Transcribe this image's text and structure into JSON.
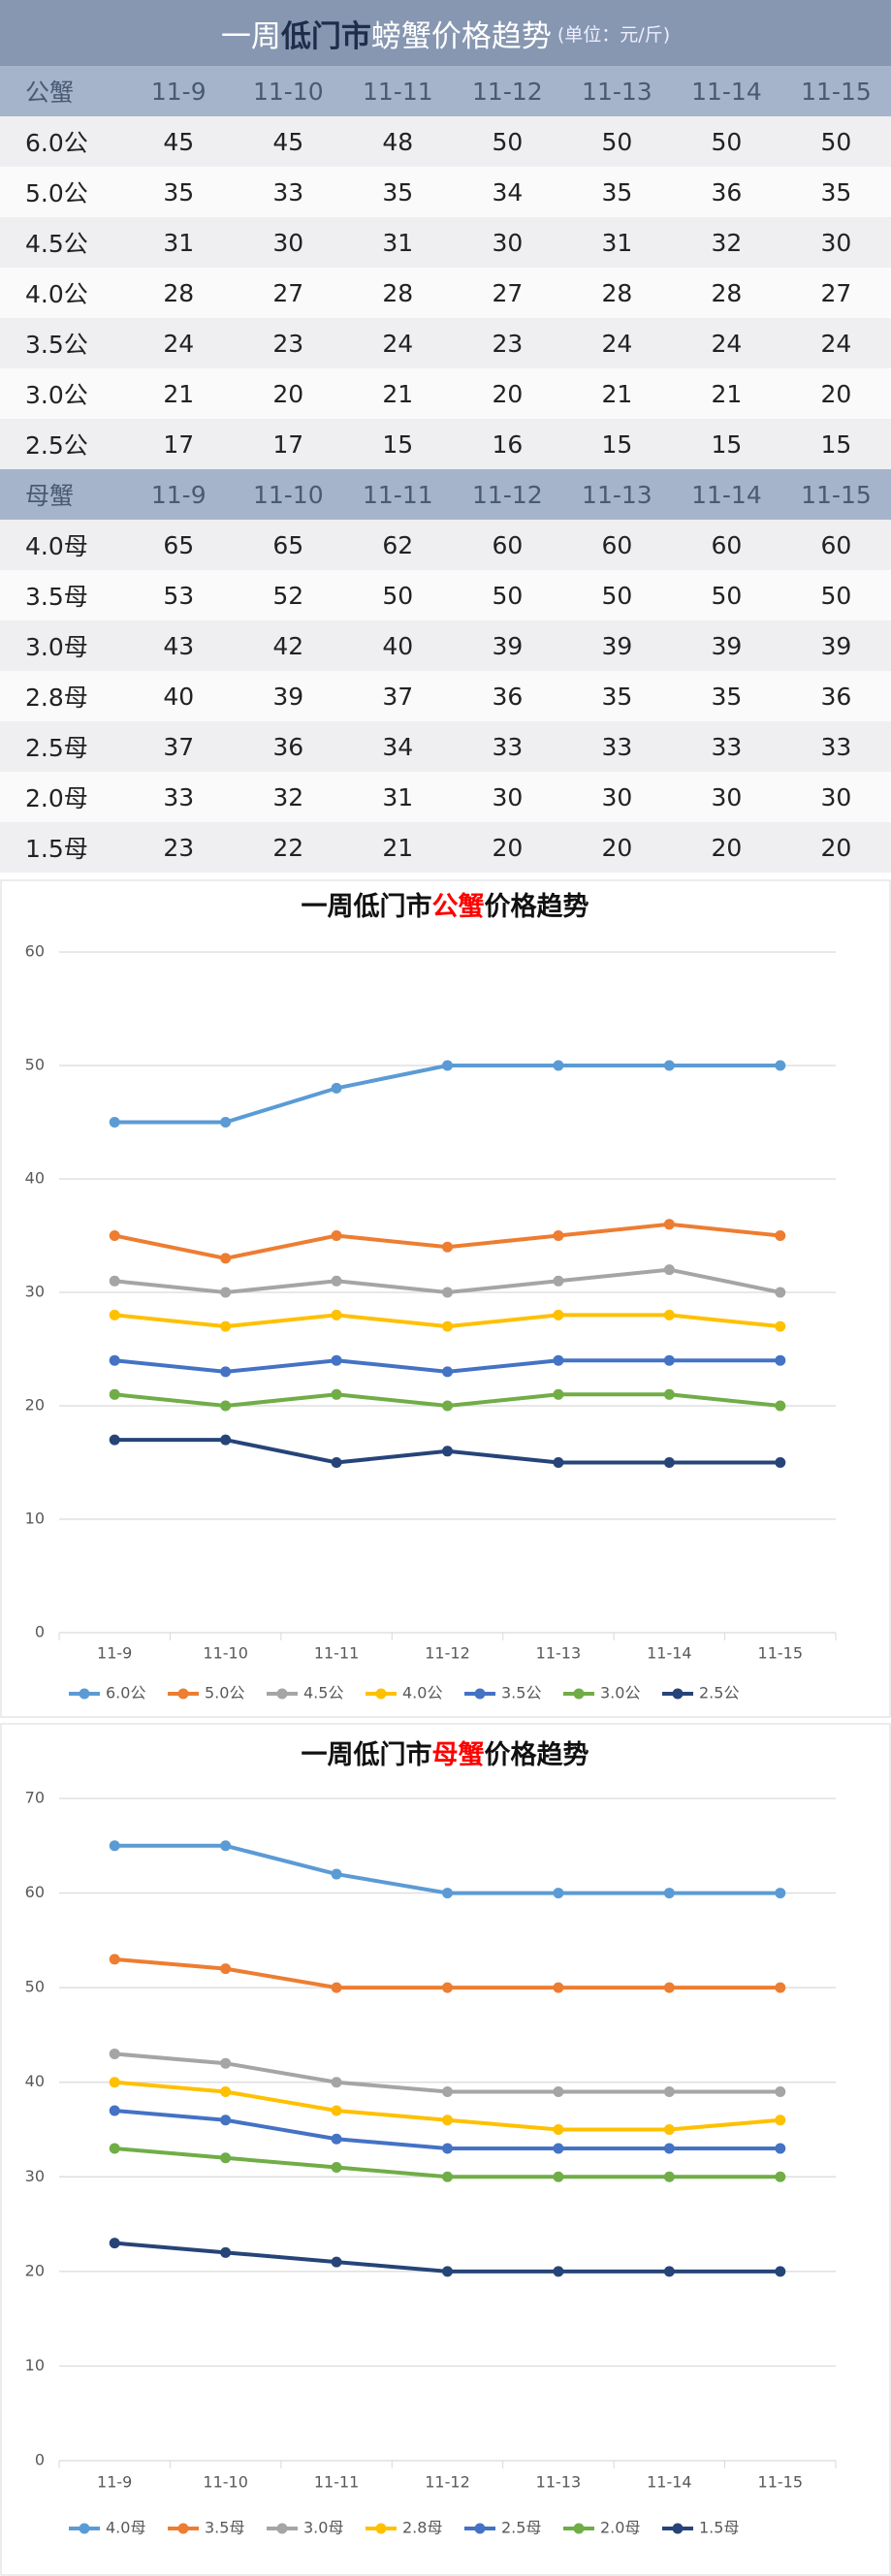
{
  "header": {
    "title": [
      "一周",
      "低门市",
      "螃蟹价格趋势"
    ],
    "unit": "(单位：元/斤)"
  },
  "table": {
    "sections": [
      {
        "header": [
          "公蟹",
          "11-9",
          "11-10",
          "11-11",
          "11-12",
          "11-13",
          "11-14",
          "11-15"
        ],
        "rows": [
          [
            "6.0公",
            "45",
            "45",
            "48",
            "50",
            "50",
            "50",
            "50"
          ],
          [
            "5.0公",
            "35",
            "33",
            "35",
            "34",
            "35",
            "36",
            "35"
          ],
          [
            "4.5公",
            "31",
            "30",
            "31",
            "30",
            "31",
            "32",
            "30"
          ],
          [
            "4.0公",
            "28",
            "27",
            "28",
            "27",
            "28",
            "28",
            "27"
          ],
          [
            "3.5公",
            "24",
            "23",
            "24",
            "23",
            "24",
            "24",
            "24"
          ],
          [
            "3.0公",
            "21",
            "20",
            "21",
            "20",
            "21",
            "21",
            "20"
          ],
          [
            "2.5公",
            "17",
            "17",
            "15",
            "16",
            "15",
            "15",
            "15"
          ]
        ]
      },
      {
        "header": [
          "母蟹",
          "11-9",
          "11-10",
          "11-11",
          "11-12",
          "11-13",
          "11-14",
          "11-15"
        ],
        "rows": [
          [
            "4.0母",
            "65",
            "65",
            "62",
            "60",
            "60",
            "60",
            "60"
          ],
          [
            "3.5母",
            "53",
            "52",
            "50",
            "50",
            "50",
            "50",
            "50"
          ],
          [
            "3.0母",
            "43",
            "42",
            "40",
            "39",
            "39",
            "39",
            "39"
          ],
          [
            "2.8母",
            "40",
            "39",
            "37",
            "36",
            "35",
            "35",
            "36"
          ],
          [
            "2.5母",
            "37",
            "36",
            "34",
            "33",
            "33",
            "33",
            "33"
          ],
          [
            "2.0母",
            "33",
            "32",
            "31",
            "30",
            "30",
            "30",
            "30"
          ],
          [
            "1.5母",
            "23",
            "22",
            "21",
            "20",
            "20",
            "20",
            "20"
          ]
        ]
      }
    ]
  },
  "chart_data": [
    {
      "type": "line",
      "title": [
        "一周低门市",
        "公蟹",
        "价格趋势"
      ],
      "highlight_color": "#ff0000",
      "categories": [
        "11-9",
        "11-10",
        "11-11",
        "11-12",
        "11-13",
        "11-14",
        "11-15"
      ],
      "ylim": [
        0,
        60
      ],
      "yticks": [
        0,
        10,
        20,
        30,
        40,
        50,
        60
      ],
      "grid": true,
      "series": [
        {
          "name": "6.0公",
          "color": "#5b9bd5",
          "values": [
            45,
            45,
            48,
            50,
            50,
            50,
            50
          ]
        },
        {
          "name": "5.0公",
          "color": "#ed7d31",
          "values": [
            35,
            33,
            35,
            34,
            35,
            36,
            35
          ]
        },
        {
          "name": "4.5公",
          "color": "#a5a5a5",
          "values": [
            31,
            30,
            31,
            30,
            31,
            32,
            30
          ]
        },
        {
          "name": "4.0公",
          "color": "#ffc000",
          "values": [
            28,
            27,
            28,
            27,
            28,
            28,
            27
          ]
        },
        {
          "name": "3.5公",
          "color": "#4472c4",
          "values": [
            24,
            23,
            24,
            23,
            24,
            24,
            24
          ]
        },
        {
          "name": "3.0公",
          "color": "#70ad47",
          "values": [
            21,
            20,
            21,
            20,
            21,
            21,
            20
          ]
        },
        {
          "name": "2.5公",
          "color": "#264478",
          "values": [
            17,
            17,
            15,
            16,
            15,
            15,
            15
          ]
        }
      ]
    },
    {
      "type": "line",
      "title": [
        "一周低门市",
        "母蟹",
        "价格趋势"
      ],
      "highlight_color": "#ff0000",
      "categories": [
        "11-9",
        "11-10",
        "11-11",
        "11-12",
        "11-13",
        "11-14",
        "11-15"
      ],
      "ylim": [
        0,
        70
      ],
      "yticks": [
        0,
        10,
        20,
        30,
        40,
        50,
        60,
        70
      ],
      "grid": true,
      "series": [
        {
          "name": "4.0母",
          "color": "#5b9bd5",
          "values": [
            65,
            65,
            62,
            60,
            60,
            60,
            60
          ]
        },
        {
          "name": "3.5母",
          "color": "#ed7d31",
          "values": [
            53,
            52,
            50,
            50,
            50,
            50,
            50
          ]
        },
        {
          "name": "3.0母",
          "color": "#a5a5a5",
          "values": [
            43,
            42,
            40,
            39,
            39,
            39,
            39
          ]
        },
        {
          "name": "2.8母",
          "color": "#ffc000",
          "values": [
            40,
            39,
            37,
            36,
            35,
            35,
            36
          ]
        },
        {
          "name": "2.5母",
          "color": "#4472c4",
          "values": [
            37,
            36,
            34,
            33,
            33,
            33,
            33
          ]
        },
        {
          "name": "2.0母",
          "color": "#70ad47",
          "values": [
            33,
            32,
            31,
            30,
            30,
            30,
            30
          ]
        },
        {
          "name": "1.5母",
          "color": "#264478",
          "values": [
            23,
            22,
            21,
            20,
            20,
            20,
            20
          ]
        }
      ]
    }
  ]
}
